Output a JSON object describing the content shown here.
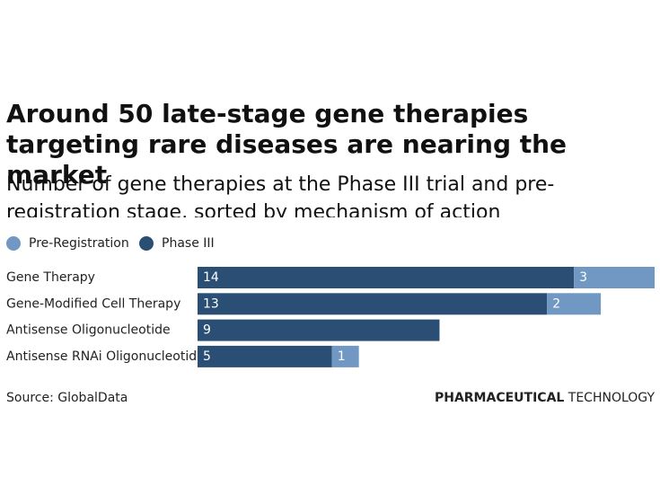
{
  "chart_data": {
    "type": "stacked-bar-horizontal",
    "title": "Around 50 late-stage gene therapies targeting rare diseases are nearing the market",
    "subtitle": "Number of gene therapies at the Phase III trial and pre-registration stage, sorted by mechanism of action",
    "categories": [
      "Gene Therapy",
      "Gene-Modified Cell Therapy",
      "Antisense Oligonucleotide",
      "Antisense RNAi Oligonucleotide"
    ],
    "series": [
      {
        "name": "Pre-Registration",
        "color": "#7098c3",
        "values": [
          3,
          2,
          null,
          1
        ]
      },
      {
        "name": "Phase III",
        "color": "#2b4f74",
        "values": [
          14,
          13,
          9,
          5
        ]
      }
    ],
    "source": "Source: GlobalData",
    "brand": {
      "bold": "PHARMACEUTICAL",
      "light": "TECHNOLOGY"
    }
  }
}
